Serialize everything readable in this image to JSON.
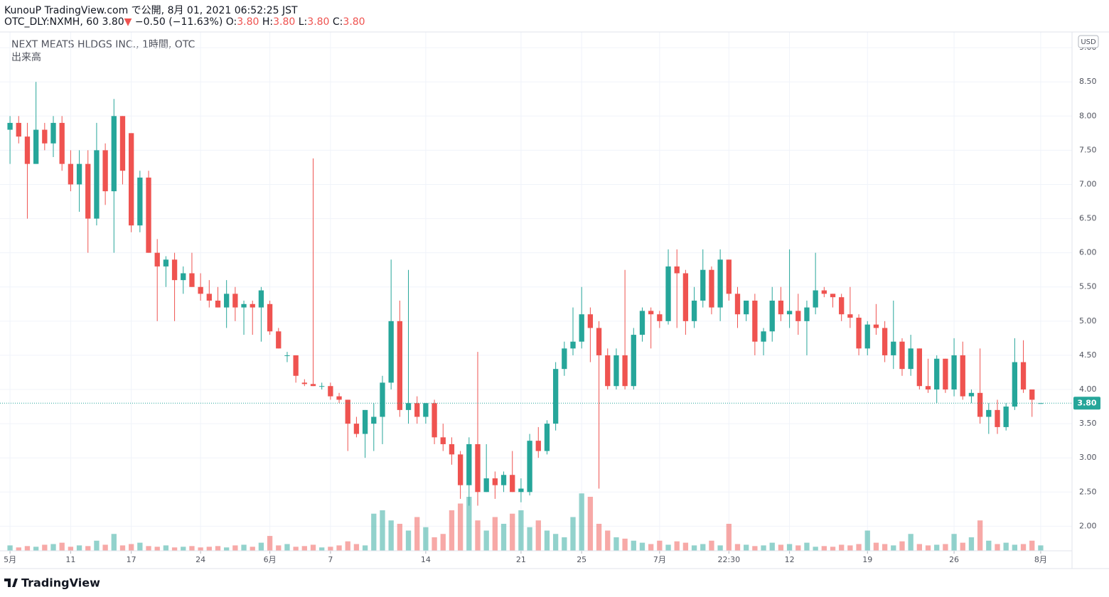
{
  "header": {
    "publisher": "KunouP TradingView.com で公開, 8月 01, 2021 06:52:25 JST",
    "symbol": "OTC_DLY:NXMH, 60",
    "last": "3.80",
    "change_arrow": "▼",
    "change": "−0.50 (−11.63%)",
    "ohlc": [
      {
        "label": "O:",
        "value": "3.80"
      },
      {
        "label": "H:",
        "value": "3.80"
      },
      {
        "label": "L:",
        "value": "3.80"
      },
      {
        "label": "C:",
        "value": "3.80"
      }
    ]
  },
  "chart_data": {
    "type": "candlestick",
    "title": "NEXT MEATS HLDGS INC., 1時間, OTC",
    "volume_label": "出来高",
    "currency": "USD",
    "up_color": "#26a69a",
    "down_color": "#ef5350",
    "grid": true,
    "last_price": {
      "value": 3.8,
      "label": "3.80"
    },
    "ylim": [
      1.64,
      9.23
    ],
    "yticks": [
      {
        "value": 2,
        "label": "2.00"
      },
      {
        "value": 2.5,
        "label": "2.50"
      },
      {
        "value": 3,
        "label": "3.00"
      },
      {
        "value": 3.5,
        "label": "3.50"
      },
      {
        "value": 4,
        "label": "4.00"
      },
      {
        "value": 4.5,
        "label": "4.50"
      },
      {
        "value": 5,
        "label": "5.00"
      },
      {
        "value": 5.5,
        "label": "5.50"
      },
      {
        "value": 6,
        "label": "6.00"
      },
      {
        "value": 6.5,
        "label": "6.50"
      },
      {
        "value": 7,
        "label": "7.00"
      },
      {
        "value": 7.5,
        "label": "7.50"
      },
      {
        "value": 8,
        "label": "8.00"
      },
      {
        "value": 8.5,
        "label": "8.50"
      },
      {
        "value": 9,
        "label": "9.00"
      }
    ],
    "xticks": [
      {
        "value": 0,
        "label": "5月"
      },
      {
        "value": 7,
        "label": "11"
      },
      {
        "value": 14,
        "label": "17"
      },
      {
        "value": 22,
        "label": "24"
      },
      {
        "value": 30,
        "label": "6月"
      },
      {
        "value": 37,
        "label": "7"
      },
      {
        "value": 48,
        "label": "14"
      },
      {
        "value": 59,
        "label": "21"
      },
      {
        "value": 66,
        "label": "25"
      },
      {
        "value": 75,
        "label": "7月"
      },
      {
        "value": 83,
        "label": "22:30"
      },
      {
        "value": 90,
        "label": "12"
      },
      {
        "value": 99,
        "label": "19"
      },
      {
        "value": 109,
        "label": "26"
      },
      {
        "value": 119,
        "label": "8月"
      }
    ],
    "ohlc": [
      [
        7.8,
        8.0,
        7.3,
        7.9
      ],
      [
        7.9,
        8.0,
        7.6,
        7.7
      ],
      [
        7.7,
        7.9,
        6.5,
        7.3
      ],
      [
        7.3,
        8.5,
        7.3,
        7.8
      ],
      [
        7.8,
        7.9,
        7.5,
        7.6
      ],
      [
        7.6,
        8.0,
        7.4,
        7.9
      ],
      [
        7.9,
        8.0,
        7.2,
        7.3
      ],
      [
        7.3,
        7.5,
        6.9,
        7.0
      ],
      [
        7.0,
        7.5,
        6.6,
        7.3
      ],
      [
        7.3,
        7.5,
        6.0,
        6.5
      ],
      [
        6.5,
        7.9,
        6.4,
        7.5
      ],
      [
        7.5,
        7.6,
        6.7,
        6.9
      ],
      [
        6.9,
        8.25,
        6.0,
        8.0
      ],
      [
        8.0,
        8.0,
        7.0,
        7.2
      ],
      [
        7.75,
        7.75,
        6.3,
        6.4
      ],
      [
        6.4,
        7.2,
        6.3,
        7.1
      ],
      [
        7.1,
        7.2,
        6.0,
        6.0
      ],
      [
        6.0,
        6.2,
        5.0,
        5.8
      ],
      [
        5.8,
        5.95,
        5.5,
        5.9
      ],
      [
        5.9,
        6.0,
        5.0,
        5.6
      ],
      [
        5.6,
        5.8,
        5.4,
        5.7
      ],
      [
        5.7,
        6.0,
        5.5,
        5.5
      ],
      [
        5.5,
        5.7,
        5.3,
        5.4
      ],
      [
        5.4,
        5.6,
        5.2,
        5.3
      ],
      [
        5.3,
        5.5,
        5.2,
        5.2
      ],
      [
        5.2,
        5.6,
        4.9,
        5.4
      ],
      [
        5.4,
        5.5,
        5.0,
        5.2
      ],
      [
        5.2,
        5.3,
        4.8,
        5.25
      ],
      [
        5.25,
        5.3,
        4.8,
        5.2
      ],
      [
        5.2,
        5.5,
        4.7,
        5.45
      ],
      [
        5.25,
        5.3,
        4.8,
        4.85
      ],
      [
        4.85,
        4.9,
        4.6,
        4.6
      ],
      [
        4.5,
        4.55,
        4.4,
        4.5
      ],
      [
        4.5,
        4.5,
        4.1,
        4.2
      ],
      [
        4.1,
        4.15,
        4.05,
        4.08
      ],
      [
        4.08,
        7.38,
        4.05,
        4.05
      ],
      [
        4.05,
        4.1,
        4.0,
        4.05
      ],
      [
        4.05,
        4.1,
        3.85,
        3.9
      ],
      [
        3.9,
        3.95,
        3.8,
        3.85
      ],
      [
        3.85,
        3.85,
        3.1,
        3.5
      ],
      [
        3.5,
        3.6,
        3.3,
        3.35
      ],
      [
        3.35,
        3.7,
        3.0,
        3.7
      ],
      [
        3.5,
        3.8,
        3.1,
        3.6
      ],
      [
        3.6,
        4.2,
        3.2,
        4.1
      ],
      [
        4.1,
        5.9,
        4.0,
        5.0
      ],
      [
        5.0,
        5.3,
        3.6,
        3.7
      ],
      [
        3.7,
        5.75,
        3.5,
        3.8
      ],
      [
        3.8,
        3.9,
        3.5,
        3.6
      ],
      [
        3.6,
        3.8,
        3.5,
        3.8
      ],
      [
        3.8,
        3.85,
        3.2,
        3.3
      ],
      [
        3.3,
        3.5,
        3.1,
        3.2
      ],
      [
        3.2,
        3.3,
        2.9,
        3.05
      ],
      [
        3.05,
        3.1,
        2.4,
        2.6
      ],
      [
        2.6,
        3.3,
        2.3,
        3.2
      ],
      [
        3.2,
        4.55,
        2.3,
        2.5
      ],
      [
        2.5,
        3.2,
        2.5,
        2.7
      ],
      [
        2.7,
        2.8,
        2.4,
        2.6
      ],
      [
        2.6,
        2.8,
        2.5,
        2.75
      ],
      [
        2.75,
        3.1,
        2.5,
        2.5
      ],
      [
        2.5,
        2.7,
        2.35,
        2.55
      ],
      [
        2.5,
        3.35,
        2.45,
        3.25
      ],
      [
        3.25,
        3.45,
        3.0,
        3.1
      ],
      [
        3.1,
        3.55,
        3.05,
        3.5
      ],
      [
        3.5,
        4.4,
        3.4,
        4.3
      ],
      [
        4.3,
        4.7,
        4.2,
        4.6
      ],
      [
        4.6,
        5.2,
        4.5,
        4.7
      ],
      [
        4.7,
        5.5,
        4.6,
        5.1
      ],
      [
        5.1,
        5.2,
        4.4,
        4.9
      ],
      [
        4.9,
        5.0,
        2.55,
        4.5
      ],
      [
        4.5,
        4.6,
        4.0,
        4.05
      ],
      [
        4.05,
        4.6,
        4.0,
        4.5
      ],
      [
        4.5,
        5.75,
        4.0,
        4.05
      ],
      [
        4.05,
        4.9,
        4.0,
        4.8
      ],
      [
        4.8,
        5.2,
        4.7,
        5.15
      ],
      [
        5.15,
        5.2,
        4.6,
        5.1
      ],
      [
        5.1,
        5.15,
        4.9,
        5.0
      ],
      [
        5.0,
        6.05,
        4.95,
        5.8
      ],
      [
        5.8,
        6.05,
        4.9,
        5.7
      ],
      [
        5.7,
        5.75,
        4.8,
        5.0
      ],
      [
        5.0,
        5.5,
        4.9,
        5.3
      ],
      [
        5.3,
        6.05,
        5.2,
        5.75
      ],
      [
        5.75,
        5.8,
        5.1,
        5.2
      ],
      [
        5.2,
        6.05,
        5.0,
        5.9
      ],
      [
        5.9,
        5.9,
        5.3,
        5.4
      ],
      [
        5.4,
        5.5,
        4.9,
        5.1
      ],
      [
        5.1,
        5.3,
        5.0,
        5.3
      ],
      [
        5.3,
        5.4,
        4.5,
        4.7
      ],
      [
        4.7,
        4.9,
        4.5,
        4.85
      ],
      [
        4.85,
        5.5,
        4.7,
        5.3
      ],
      [
        5.3,
        5.5,
        5.0,
        5.1
      ],
      [
        5.1,
        6.05,
        4.9,
        5.15
      ],
      [
        5.15,
        5.4,
        4.8,
        5.0
      ],
      [
        5.0,
        5.3,
        4.5,
        5.2
      ],
      [
        5.2,
        6.0,
        5.1,
        5.45
      ],
      [
        5.45,
        5.5,
        5.35,
        5.4
      ],
      [
        5.4,
        5.4,
        5.2,
        5.35
      ],
      [
        5.35,
        5.4,
        5.0,
        5.1
      ],
      [
        5.1,
        5.5,
        4.9,
        5.05
      ],
      [
        5.05,
        5.1,
        4.5,
        4.6
      ],
      [
        4.6,
        5.0,
        4.5,
        4.95
      ],
      [
        4.95,
        5.25,
        4.8,
        4.9
      ],
      [
        4.9,
        5.0,
        4.4,
        4.5
      ],
      [
        4.5,
        5.3,
        4.3,
        4.7
      ],
      [
        4.7,
        4.75,
        4.2,
        4.3
      ],
      [
        4.3,
        4.8,
        4.2,
        4.6
      ],
      [
        4.6,
        4.6,
        4.0,
        4.05
      ],
      [
        4.05,
        4.45,
        3.95,
        4.0
      ],
      [
        4.0,
        4.5,
        3.8,
        4.45
      ],
      [
        4.45,
        4.45,
        3.95,
        4.0
      ],
      [
        4.0,
        4.75,
        3.9,
        4.5
      ],
      [
        4.5,
        4.7,
        3.85,
        3.9
      ],
      [
        3.9,
        4.0,
        3.8,
        3.95
      ],
      [
        3.95,
        4.6,
        3.5,
        3.6
      ],
      [
        3.6,
        3.8,
        3.35,
        3.7
      ],
      [
        3.7,
        3.85,
        3.35,
        3.45
      ],
      [
        3.45,
        3.8,
        3.4,
        3.75
      ],
      [
        3.75,
        4.75,
        3.7,
        4.4
      ],
      [
        4.4,
        4.72,
        3.95,
        4.0
      ],
      [
        4.0,
        4.0,
        3.6,
        3.85
      ],
      [
        3.8,
        3.8,
        3.8,
        3.8
      ]
    ],
    "volume_lim": [
      0,
      100
    ],
    "volume": [
      8,
      5,
      7,
      6,
      9,
      10,
      12,
      6,
      8,
      7,
      15,
      9,
      25,
      8,
      10,
      12,
      7,
      6,
      8,
      5,
      6,
      7,
      5,
      6,
      7,
      5,
      8,
      9,
      6,
      12,
      22,
      8,
      10,
      6,
      7,
      9,
      5,
      6,
      8,
      14,
      10,
      8,
      55,
      60,
      45,
      40,
      30,
      50,
      35,
      20,
      25,
      60,
      70,
      80,
      45,
      30,
      50,
      40,
      55,
      60,
      35,
      45,
      30,
      25,
      20,
      50,
      85,
      80,
      40,
      30,
      20,
      18,
      15,
      12,
      10,
      15,
      9,
      14,
      12,
      8,
      10,
      15,
      8,
      40,
      10,
      9,
      7,
      8,
      12,
      9,
      10,
      8,
      12,
      6,
      7,
      6,
      9,
      8,
      10,
      30,
      12,
      10,
      8,
      14,
      25,
      10,
      8,
      9,
      10,
      25,
      12,
      20,
      45,
      15,
      10,
      12,
      9,
      10,
      15,
      8
    ]
  },
  "footer": {
    "logo": "TradingView"
  }
}
